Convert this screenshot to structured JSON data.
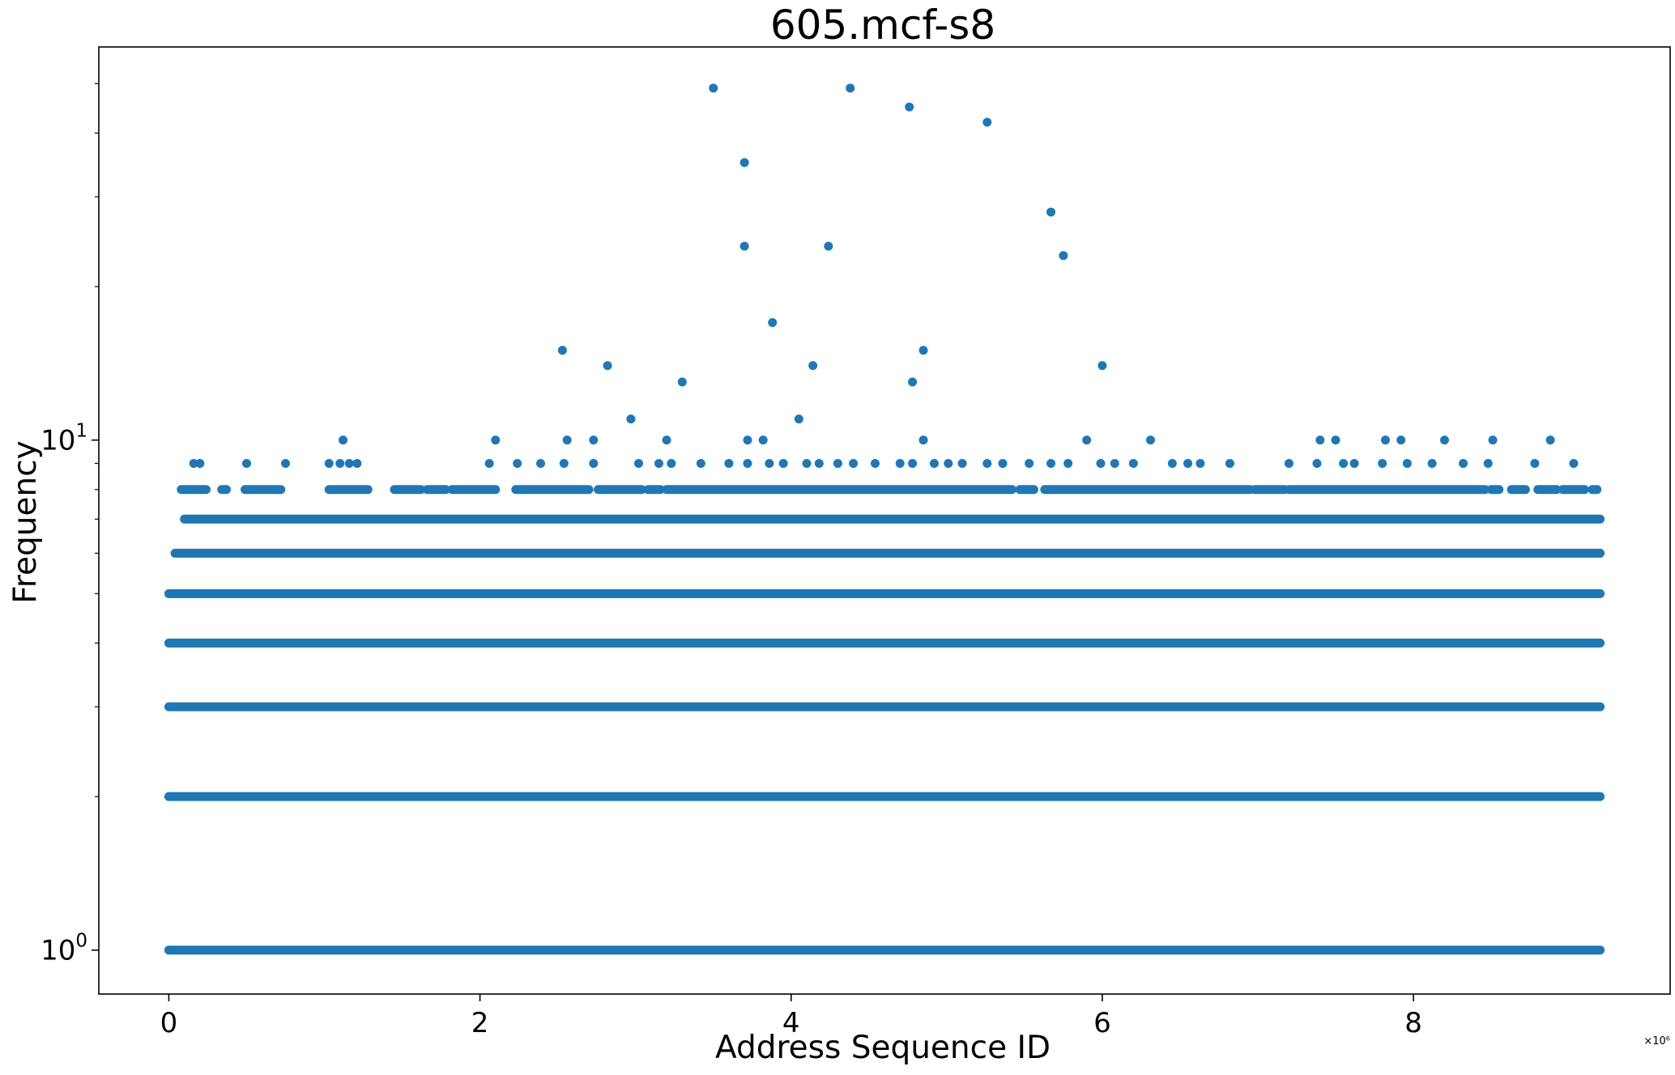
{
  "chart_data": {
    "type": "scatter",
    "title": "605.mcf-s8",
    "xlabel": "Address Sequence ID",
    "ylabel": "Frequency",
    "x_offset_label": "×10⁶",
    "x_scale": "linear",
    "y_scale": "log",
    "xlim": [
      -0.45,
      9.65
    ],
    "ylim": [
      0.82,
      59
    ],
    "x_ticks": [
      0,
      2,
      4,
      6,
      8
    ],
    "x_tick_labels": [
      "0",
      "2",
      "4",
      "6",
      "8"
    ],
    "y_major_ticks": [
      1,
      10
    ],
    "y_major_tick_labels": {
      "1": {
        "base": "10",
        "exp": "0"
      },
      "10": {
        "base": "10",
        "exp": "1"
      }
    },
    "y_minor_ticks": [
      2,
      3,
      4,
      5,
      6,
      7,
      8,
      9,
      20,
      30,
      40,
      50
    ],
    "grid": false,
    "marker_color": "#1f77b4",
    "series": [
      {
        "continuous_bands": [
          {
            "y": 1,
            "x_range": [
              0.0,
              9.2
            ]
          },
          {
            "y": 2,
            "x_range": [
              0.0,
              9.2
            ]
          },
          {
            "y": 3,
            "x_range": [
              0.0,
              9.2
            ]
          },
          {
            "y": 4,
            "x_range": [
              0.0,
              9.2
            ]
          },
          {
            "y": 5,
            "x_range": [
              0.0,
              9.2
            ]
          },
          {
            "y": 6,
            "x_range": [
              0.04,
              9.2
            ]
          },
          {
            "y": 7,
            "x_range": [
              0.1,
              9.2
            ]
          }
        ],
        "points": [
          {
            "x": 3.5,
            "y": 49
          },
          {
            "x": 4.38,
            "y": 49
          },
          {
            "x": 4.76,
            "y": 45
          },
          {
            "x": 5.26,
            "y": 42
          },
          {
            "x": 3.7,
            "y": 35
          },
          {
            "x": 5.67,
            "y": 28
          },
          {
            "x": 3.7,
            "y": 24
          },
          {
            "x": 4.24,
            "y": 24
          },
          {
            "x": 5.75,
            "y": 23
          },
          {
            "x": 3.88,
            "y": 17
          },
          {
            "x": 2.53,
            "y": 15
          },
          {
            "x": 4.85,
            "y": 15
          },
          {
            "x": 2.82,
            "y": 14
          },
          {
            "x": 4.14,
            "y": 14
          },
          {
            "x": 6.0,
            "y": 14
          },
          {
            "x": 3.3,
            "y": 13
          },
          {
            "x": 4.78,
            "y": 13
          },
          {
            "x": 2.97,
            "y": 11
          },
          {
            "x": 4.05,
            "y": 11
          },
          {
            "x": 1.12,
            "y": 10
          },
          {
            "x": 2.1,
            "y": 10
          },
          {
            "x": 2.56,
            "y": 10
          },
          {
            "x": 2.73,
            "y": 10
          },
          {
            "x": 3.2,
            "y": 10
          },
          {
            "x": 3.72,
            "y": 10
          },
          {
            "x": 3.82,
            "y": 10
          },
          {
            "x": 4.85,
            "y": 10
          },
          {
            "x": 5.9,
            "y": 10
          },
          {
            "x": 6.31,
            "y": 10
          },
          {
            "x": 7.4,
            "y": 10
          },
          {
            "x": 7.5,
            "y": 10
          },
          {
            "x": 7.82,
            "y": 10
          },
          {
            "x": 7.92,
            "y": 10
          },
          {
            "x": 8.2,
            "y": 10
          },
          {
            "x": 8.51,
            "y": 10
          },
          {
            "x": 8.88,
            "y": 10
          },
          {
            "x": 0.16,
            "y": 9
          },
          {
            "x": 0.2,
            "y": 9
          },
          {
            "x": 0.5,
            "y": 9
          },
          {
            "x": 0.75,
            "y": 9
          },
          {
            "x": 1.03,
            "y": 9
          },
          {
            "x": 1.1,
            "y": 9
          },
          {
            "x": 1.16,
            "y": 9
          },
          {
            "x": 1.21,
            "y": 9
          },
          {
            "x": 2.06,
            "y": 9
          },
          {
            "x": 2.24,
            "y": 9
          },
          {
            "x": 2.39,
            "y": 9
          },
          {
            "x": 2.54,
            "y": 9
          },
          {
            "x": 2.73,
            "y": 9
          },
          {
            "x": 3.02,
            "y": 9
          },
          {
            "x": 3.15,
            "y": 9
          },
          {
            "x": 3.23,
            "y": 9
          },
          {
            "x": 3.42,
            "y": 9
          },
          {
            "x": 3.6,
            "y": 9
          },
          {
            "x": 3.72,
            "y": 9
          },
          {
            "x": 3.86,
            "y": 9
          },
          {
            "x": 3.95,
            "y": 9
          },
          {
            "x": 4.1,
            "y": 9
          },
          {
            "x": 4.18,
            "y": 9
          },
          {
            "x": 4.3,
            "y": 9
          },
          {
            "x": 4.4,
            "y": 9
          },
          {
            "x": 4.54,
            "y": 9
          },
          {
            "x": 4.7,
            "y": 9
          },
          {
            "x": 4.78,
            "y": 9
          },
          {
            "x": 4.92,
            "y": 9
          },
          {
            "x": 5.01,
            "y": 9
          },
          {
            "x": 5.1,
            "y": 9
          },
          {
            "x": 5.26,
            "y": 9
          },
          {
            "x": 5.36,
            "y": 9
          },
          {
            "x": 5.53,
            "y": 9
          },
          {
            "x": 5.67,
            "y": 9
          },
          {
            "x": 5.78,
            "y": 9
          },
          {
            "x": 5.99,
            "y": 9
          },
          {
            "x": 6.08,
            "y": 9
          },
          {
            "x": 6.2,
            "y": 9
          },
          {
            "x": 6.45,
            "y": 9
          },
          {
            "x": 6.55,
            "y": 9
          },
          {
            "x": 6.63,
            "y": 9
          },
          {
            "x": 6.82,
            "y": 9
          },
          {
            "x": 7.2,
            "y": 9
          },
          {
            "x": 7.38,
            "y": 9
          },
          {
            "x": 7.55,
            "y": 9
          },
          {
            "x": 7.62,
            "y": 9
          },
          {
            "x": 7.8,
            "y": 9
          },
          {
            "x": 7.96,
            "y": 9
          },
          {
            "x": 8.12,
            "y": 9
          },
          {
            "x": 8.32,
            "y": 9
          },
          {
            "x": 8.48,
            "y": 9
          },
          {
            "x": 8.78,
            "y": 9
          },
          {
            "x": 9.03,
            "y": 9
          }
        ],
        "y8_segments": [
          [
            0.08,
            0.24
          ],
          [
            0.34,
            0.37
          ],
          [
            0.49,
            0.72
          ],
          [
            1.03,
            1.28
          ],
          [
            1.45,
            1.62
          ],
          [
            1.66,
            1.78
          ],
          [
            1.82,
            2.1
          ],
          [
            2.23,
            2.7
          ],
          [
            2.76,
            3.04
          ],
          [
            3.08,
            3.16
          ],
          [
            3.2,
            5.42
          ],
          [
            5.47,
            5.56
          ],
          [
            5.63,
            6.95
          ],
          [
            6.98,
            7.17
          ],
          [
            7.2,
            8.46
          ],
          [
            8.5,
            8.55
          ],
          [
            8.63,
            8.72
          ],
          [
            8.8,
            8.92
          ],
          [
            8.96,
            9.1
          ],
          [
            9.15,
            9.18
          ]
        ]
      }
    ]
  }
}
